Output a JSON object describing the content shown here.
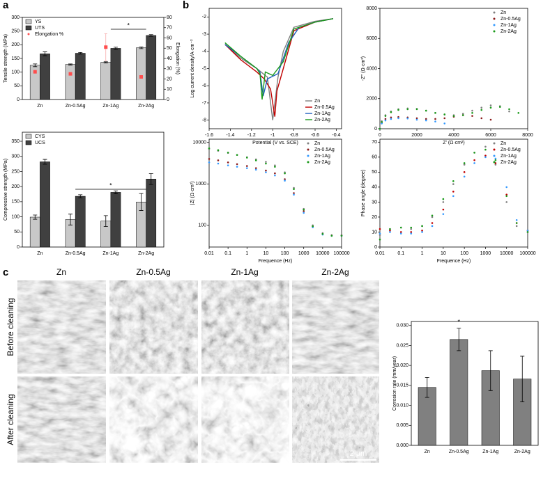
{
  "panel_labels": [
    "a",
    "b",
    "c"
  ],
  "micrographs": {
    "columns": [
      "Zn",
      "Zn-0.5Ag",
      "Zn-1Ag",
      "Zn-2Ag"
    ],
    "rows": [
      "Before cleaning",
      "After cleaning"
    ],
    "scale_bar": "2 μm"
  },
  "chart_data": [
    {
      "type": "bar",
      "y_label": "Tensile strength (MPa)",
      "y2_label": "Elongation (%)",
      "annotation": "*",
      "legend": "upper left",
      "categories": [
        "Zn",
        "Zn-0.5Ag",
        "Zn-1Ag",
        "Zn-2Ag"
      ],
      "series": [
        {
          "name": "YS",
          "color": "#c8c8c8",
          "values": [
            125,
            128,
            136,
            189
          ],
          "errors": [
            5,
            2,
            2,
            3
          ]
        },
        {
          "name": "UTS",
          "color": "#404040",
          "values": [
            167,
            169,
            187,
            234
          ],
          "errors": [
            7,
            3,
            4,
            3
          ]
        },
        {
          "name": "Elongation %",
          "color": "#ff4d4d",
          "axis": "y2",
          "kind": "point",
          "values": [
            27,
            25,
            51,
            22
          ],
          "errors": [
            1,
            1,
            13,
            1
          ]
        }
      ],
      "ylim": [
        0,
        300
      ],
      "yticks": [
        0,
        50,
        100,
        150,
        200,
        250,
        300
      ],
      "y2lim": [
        0,
        80
      ],
      "y2ticks": [
        0,
        10,
        20,
        30,
        40,
        50,
        60,
        70,
        80
      ]
    },
    {
      "type": "bar",
      "y_label": "Compressive strength (MPa)",
      "annotation": "*",
      "legend": "upper left",
      "categories": [
        "Zn",
        "Zn-0.5Ag",
        "Zn-1Ag",
        "Zn-2Ag"
      ],
      "series": [
        {
          "name": "CYS",
          "color": "#c8c8c8",
          "values": [
            99,
            91,
            86,
            149
          ],
          "errors": [
            7,
            18,
            18,
            28
          ]
        },
        {
          "name": "UCS",
          "color": "#404040",
          "values": [
            282,
            168,
            181,
            225
          ],
          "errors": [
            8,
            5,
            5,
            18
          ]
        }
      ],
      "ylim": [
        0,
        380
      ],
      "yticks": [
        0,
        50,
        100,
        150,
        200,
        250,
        300,
        350
      ]
    },
    {
      "type": "line",
      "x_label": "Potential (V vs. SCE)",
      "y_label": "Log current density/A·cm⁻²",
      "legend": "lower right",
      "series": [
        {
          "name": "Zn",
          "color": "#808080",
          "x": [
            -1.45,
            -1.3,
            -1.15,
            -1.05,
            -1.0,
            -0.95,
            -0.9,
            -0.8,
            -0.6,
            -0.43
          ],
          "values": [
            -3.6,
            -4.4,
            -5.0,
            -5.5,
            -8.0,
            -5.5,
            -4.0,
            -2.6,
            -2.25,
            -2.1
          ]
        },
        {
          "name": "Zn-0.5Ag",
          "color": "#c00000",
          "x": [
            -1.45,
            -1.3,
            -1.15,
            -1.08,
            -1.02,
            -0.98,
            -0.96,
            -0.9,
            -0.8,
            -0.6,
            -0.43
          ],
          "values": [
            -3.6,
            -4.5,
            -5.2,
            -5.6,
            -6.2,
            -7.8,
            -6.3,
            -5.0,
            -2.8,
            -2.3,
            -2.1
          ]
        },
        {
          "name": "Zn-1Ag",
          "color": "#1f5fbf",
          "x": [
            -1.45,
            -1.3,
            -1.15,
            -1.12,
            -1.09,
            -1.05,
            -0.95,
            -0.85,
            -0.75,
            -0.6,
            -0.43
          ],
          "values": [
            -3.6,
            -4.3,
            -5.0,
            -5.2,
            -6.6,
            -5.6,
            -5.3,
            -3.5,
            -2.6,
            -2.3,
            -2.1
          ]
        },
        {
          "name": "Zn-2Ag",
          "color": "#1a9a1a",
          "x": [
            -1.45,
            -1.3,
            -1.15,
            -1.12,
            -1.1,
            -1.07,
            -1.0,
            -0.9,
            -0.8,
            -0.6,
            -0.43
          ],
          "values": [
            -3.5,
            -4.3,
            -5.0,
            -5.3,
            -6.8,
            -5.2,
            -5.4,
            -4.6,
            -2.7,
            -2.3,
            -2.1
          ]
        }
      ],
      "xlim": [
        -1.6,
        -0.35
      ],
      "xticks": [
        -1.6,
        -1.4,
        -1.2,
        -1.0,
        -0.8,
        -0.6,
        -0.4
      ],
      "ylim": [
        -8.5,
        -1.5
      ],
      "yticks": [
        -8,
        -7,
        -6,
        -5,
        -4,
        -3,
        -2
      ]
    },
    {
      "type": "scatter",
      "x_label": "Z' (Ω·cm²)",
      "y_label": "-Z'' (Ω·cm²)",
      "legend": "upper right",
      "series": [
        {
          "name": "Zn",
          "color": "#808080",
          "x": [
            0,
            100,
            300,
            600,
            1000,
            1500,
            2000,
            2500,
            3000,
            3500,
            4000,
            4500,
            5000,
            5500,
            6000,
            6500,
            7000
          ],
          "values": [
            0,
            500,
            900,
            1150,
            1300,
            1350,
            1320,
            1200,
            1050,
            950,
            900,
            1000,
            1200,
            1400,
            1550,
            1500,
            1150
          ]
        },
        {
          "name": "Zn-0.5Ag",
          "color": "#8b1a1a",
          "x": [
            0,
            100,
            300,
            600,
            1000,
            1500,
            2000,
            2500,
            3000,
            3500,
            4000,
            4500,
            5000,
            5500,
            6000
          ],
          "values": [
            0,
            400,
            650,
            750,
            780,
            750,
            700,
            650,
            650,
            700,
            800,
            900,
            850,
            700,
            600
          ]
        },
        {
          "name": "Zn-1Ag",
          "color": "#3399ff",
          "x": [
            0,
            100,
            300,
            600,
            1000,
            1500,
            2000,
            2500,
            3000,
            3500
          ],
          "values": [
            0,
            350,
            550,
            650,
            700,
            680,
            600,
            550,
            480,
            350
          ]
        },
        {
          "name": "Zn-2Ag",
          "color": "#1a9a1a",
          "x": [
            0,
            100,
            300,
            600,
            1000,
            1500,
            2000,
            2500,
            3000,
            3500,
            4000,
            4500,
            5000,
            5500,
            6000,
            6500,
            7000,
            7500
          ],
          "values": [
            0,
            450,
            850,
            1100,
            1250,
            1300,
            1300,
            1200,
            1050,
            950,
            850,
            900,
            1050,
            1250,
            1400,
            1450,
            1300,
            1050
          ]
        }
      ],
      "xlim": [
        0,
        8000
      ],
      "xticks": [
        0,
        2000,
        4000,
        6000,
        8000
      ],
      "ylim": [
        0,
        8000
      ],
      "yticks": [
        0,
        2000,
        4000,
        6000,
        8000
      ]
    },
    {
      "type": "scatter",
      "x_label": "Frequence (Hz)",
      "y_label": "|Z| (Ω·cm²)",
      "legend": "upper right",
      "log_x": true,
      "log_y": true,
      "x": [
        0.01,
        0.03,
        0.1,
        0.3,
        1,
        3,
        10,
        30,
        100,
        300,
        1000,
        3000,
        10000,
        30000,
        100000
      ],
      "series": [
        {
          "name": "Zn",
          "color": "#808080",
          "values": [
            7000,
            6300,
            5600,
            5000,
            4400,
            3900,
            3400,
            2800,
            1900,
            800,
            250,
            100,
            65,
            58,
            58
          ]
        },
        {
          "name": "Zn-0.5Ag",
          "color": "#8b1a1a",
          "values": [
            4000,
            3700,
            3300,
            3000,
            2700,
            2400,
            2100,
            1800,
            1300,
            600,
            220,
            95,
            62,
            57,
            57
          ]
        },
        {
          "name": "Zn-1Ag",
          "color": "#3399ff",
          "values": [
            3300,
            3100,
            2800,
            2600,
            2400,
            2200,
            1900,
            1600,
            1200,
            550,
            200,
            90,
            60,
            56,
            56
          ]
        },
        {
          "name": "Zn-2Ag",
          "color": "#1a9a1a",
          "values": [
            7200,
            6500,
            5700,
            5000,
            4300,
            3700,
            3100,
            2600,
            1800,
            750,
            240,
            95,
            62,
            56,
            56
          ]
        }
      ],
      "xlim": [
        0.01,
        100000
      ],
      "xticks": [
        0.01,
        0.1,
        1,
        10,
        100,
        1000,
        10000,
        100000
      ],
      "ylim": [
        30,
        12000
      ],
      "yticks": [
        100,
        1000,
        10000
      ]
    },
    {
      "type": "scatter",
      "x_label": "Frequence (Hz)",
      "y_label": "Phase angle (degree)",
      "legend": "upper right",
      "log_x": true,
      "x": [
        0.01,
        0.03,
        0.1,
        0.3,
        1,
        3,
        10,
        30,
        100,
        300,
        1000,
        3000,
        10000,
        30000,
        100000
      ],
      "series": [
        {
          "name": "Zn",
          "color": "#808080",
          "values": [
            8,
            12,
            13,
            12,
            14,
            20,
            30,
            42,
            55,
            63,
            67,
            55,
            30,
            14,
            10
          ]
        },
        {
          "name": "Zn-0.5Ag",
          "color": "#c00000",
          "values": [
            12,
            11,
            10,
            10,
            11,
            16,
            25,
            37,
            50,
            58,
            61,
            56,
            35,
            16,
            11
          ]
        },
        {
          "name": "Zn-1Ag",
          "color": "#3399ff",
          "values": [
            9,
            10,
            9,
            9,
            10,
            14,
            22,
            34,
            47,
            56,
            60,
            59,
            40,
            18,
            11
          ]
        },
        {
          "name": "Zn-2Ag",
          "color": "#1a9a1a",
          "values": [
            5,
            12,
            13,
            13,
            14,
            21,
            32,
            44,
            56,
            63,
            65,
            58,
            34,
            16,
            10
          ]
        }
      ],
      "xlim": [
        0.01,
        100000
      ],
      "xticks": [
        0.01,
        0.1,
        1,
        10,
        100,
        1000,
        10000,
        100000
      ],
      "ylim": [
        0,
        72
      ],
      "yticks": [
        0,
        10,
        20,
        30,
        40,
        50,
        60,
        70
      ]
    },
    {
      "type": "bar",
      "y_label": "Corrosion rate (mm/year)",
      "annotation": "*",
      "categories": [
        "Zn",
        "Zn-0.5Ag",
        "Zn-1Ag",
        "Zn-2Ag"
      ],
      "series": [
        {
          "name": "Corrosion rate",
          "color": "#808080",
          "values": [
            0.0145,
            0.0265,
            0.0187,
            0.0166
          ],
          "errors": [
            0.0025,
            0.0028,
            0.005,
            0.0057
          ]
        }
      ],
      "ylim": [
        0,
        0.031
      ],
      "yticks": [
        {
          "value": 0,
          "label": "0.000"
        },
        0.005,
        {
          "value": 0.01,
          "label": "0.010"
        },
        0.015,
        {
          "value": 0.02,
          "label": "0.020"
        },
        0.025,
        {
          "value": 0.03,
          "label": "0.030"
        }
      ]
    }
  ]
}
